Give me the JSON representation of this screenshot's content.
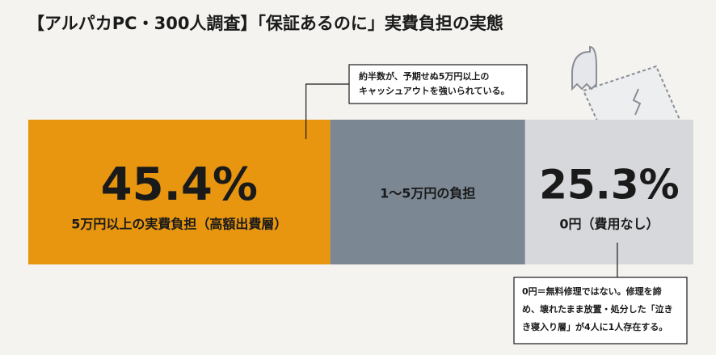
{
  "chart_data": {
    "type": "stacked_bar",
    "title": "【アルパカPC・300人調査】「保証あるのに」実費負担の実態",
    "xlim": [
      0,
      100
    ],
    "series": [
      {
        "name": "5万円以上の実費負担（高額出費層）",
        "color": "#e8960f",
        "values": [
          45.4
        ],
        "value_labels": [
          "45.4%"
        ]
      },
      {
        "name": "1〜5万円の負担",
        "color": "#7b8793",
        "values": [
          29.3
        ]
      },
      {
        "name": "0円（費用なし）",
        "color": "#d7d8dc",
        "values": [
          25.3
        ],
        "value_labels": [
          "25.3%"
        ]
      }
    ],
    "annotations": [
      {
        "lines": [
          "約半数が、予期せぬ5万円以上の",
          "キャッシュアウトを強いられている。"
        ]
      },
      {
        "lines": [
          "0円＝無料修理ではない。修理を諦",
          "め、壊れたまま放置・処分した「泣き",
          "き寝入り層」が4人に1人存在する。"
        ]
      }
    ]
  }
}
